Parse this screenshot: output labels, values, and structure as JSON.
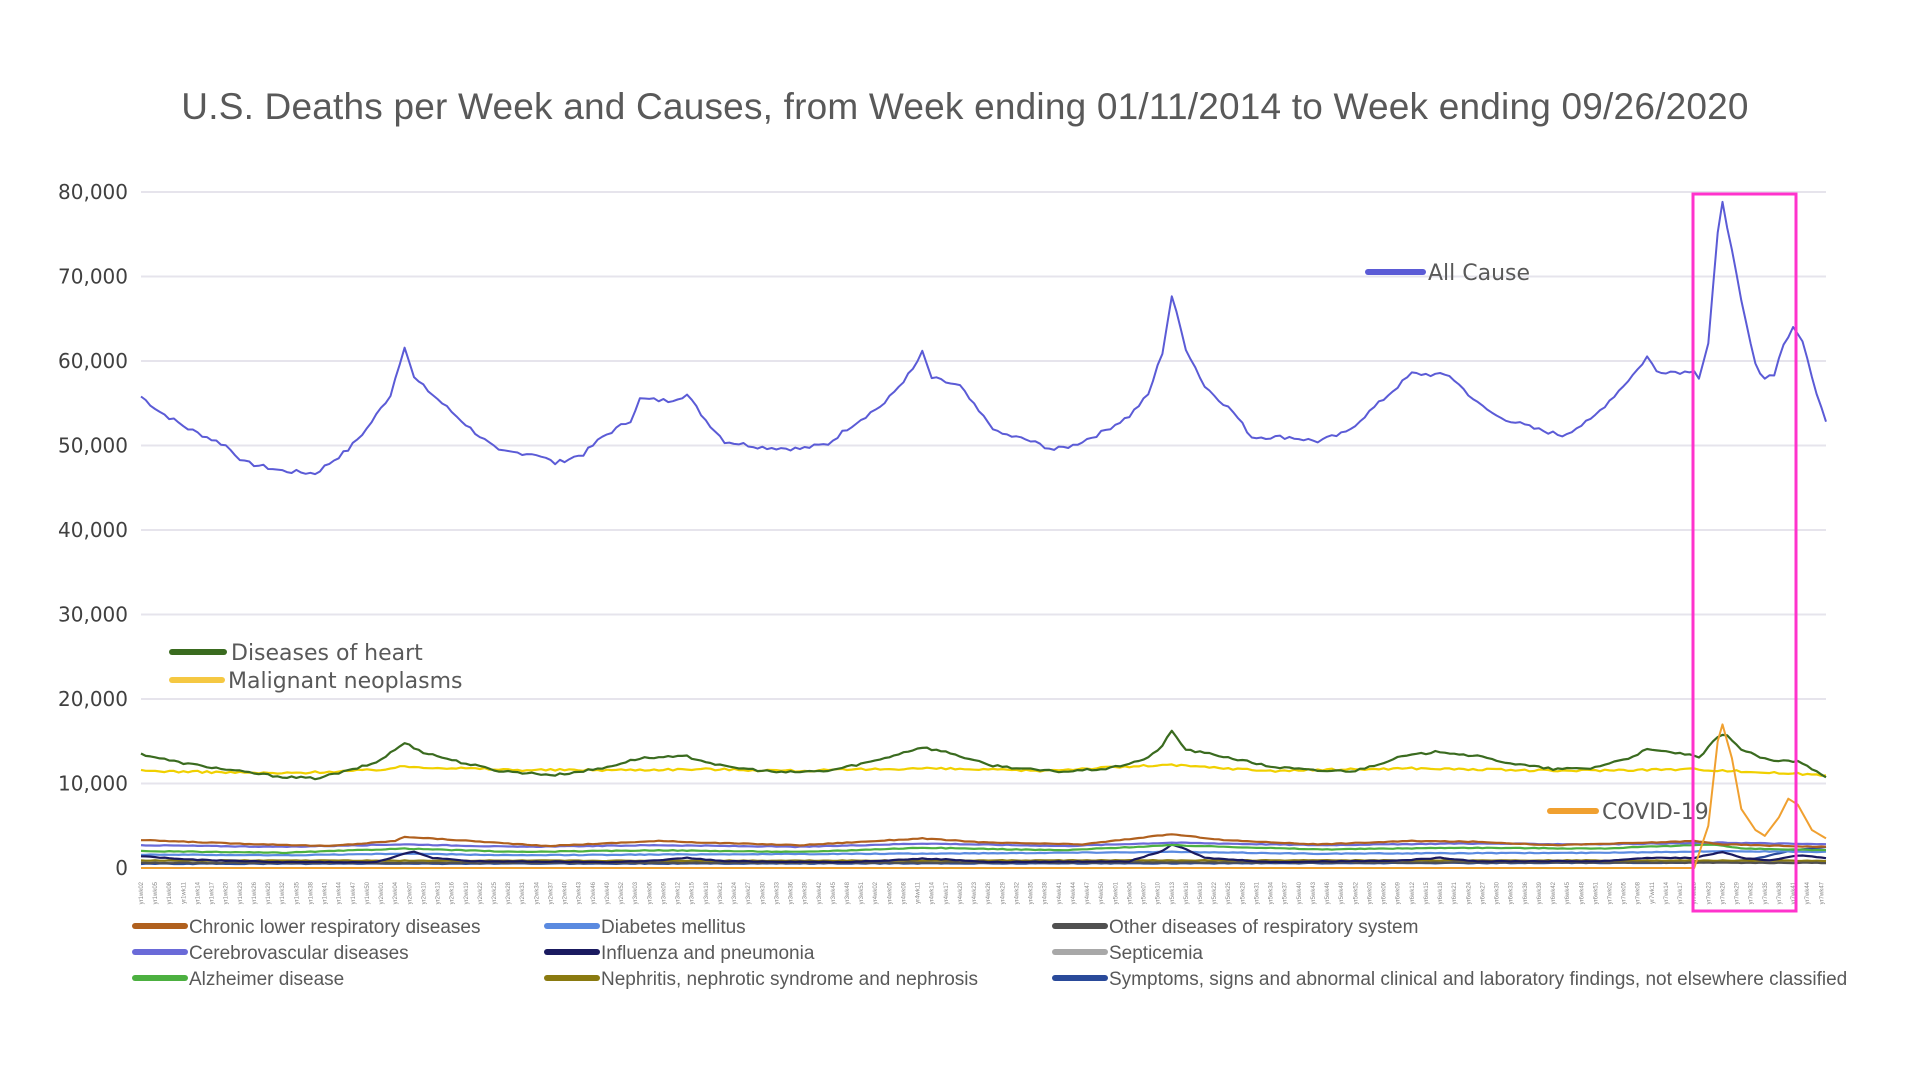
{
  "chart_data": {
    "type": "line",
    "title": "U.S. Deaths per Week and Causes, from Week ending 01/11/2014 to Week ending 09/26/2020",
    "xlabel": "",
    "ylabel": "",
    "ylim": [
      0,
      80000
    ],
    "yticks": [
      0,
      10000,
      20000,
      30000,
      40000,
      50000,
      60000,
      70000,
      80000
    ],
    "ytick_labels": [
      "0",
      "10,000",
      "20,000",
      "30,000",
      "40,000",
      "50,000",
      "60,000",
      "70,000",
      "80,000"
    ],
    "x_tick_pattern": "yr{year}wk{week}, every 3rd week",
    "n_weeks": 351,
    "grid": true,
    "highlight": {
      "label": "COVID-19 period",
      "x_start_week": 324,
      "x_end_week": 347,
      "color": "#ff33cc"
    },
    "series": [
      {
        "name": "All Cause",
        "color": "#5b5bd6",
        "anchors": [
          [
            0,
            55800
          ],
          [
            4,
            54000
          ],
          [
            10,
            52000
          ],
          [
            18,
            50000
          ],
          [
            22,
            48000
          ],
          [
            30,
            47000
          ],
          [
            37,
            46700
          ],
          [
            44,
            49500
          ],
          [
            48,
            52000
          ],
          [
            53,
            56000
          ],
          [
            56,
            61800
          ],
          [
            58,
            58000
          ],
          [
            64,
            55000
          ],
          [
            70,
            52000
          ],
          [
            76,
            49300
          ],
          [
            84,
            49000
          ],
          [
            88,
            47900
          ],
          [
            94,
            49000
          ],
          [
            98,
            51000
          ],
          [
            104,
            53000
          ],
          [
            106,
            55500
          ],
          [
            112,
            55300
          ],
          [
            116,
            56000
          ],
          [
            120,
            53000
          ],
          [
            124,
            50500
          ],
          [
            132,
            49800
          ],
          [
            140,
            49600
          ],
          [
            146,
            50200
          ],
          [
            150,
            52000
          ],
          [
            158,
            55000
          ],
          [
            164,
            59000
          ],
          [
            166,
            61000
          ],
          [
            168,
            58000
          ],
          [
            174,
            57000
          ],
          [
            178,
            54000
          ],
          [
            182,
            51500
          ],
          [
            188,
            50700
          ],
          [
            194,
            49500
          ],
          [
            198,
            50000
          ],
          [
            204,
            51500
          ],
          [
            210,
            53500
          ],
          [
            214,
            56000
          ],
          [
            217,
            61000
          ],
          [
            219,
            67700
          ],
          [
            222,
            61500
          ],
          [
            226,
            57000
          ],
          [
            232,
            54000
          ],
          [
            236,
            51000
          ],
          [
            244,
            51000
          ],
          [
            250,
            50500
          ],
          [
            256,
            51500
          ],
          [
            262,
            54500
          ],
          [
            266,
            56500
          ],
          [
            270,
            58500
          ],
          [
            278,
            58300
          ],
          [
            284,
            55000
          ],
          [
            288,
            53500
          ],
          [
            296,
            52000
          ],
          [
            302,
            51200
          ],
          [
            308,
            53000
          ],
          [
            314,
            56500
          ],
          [
            318,
            59000
          ],
          [
            320,
            60500
          ],
          [
            322,
            58800
          ],
          [
            328,
            58700
          ],
          [
            330,
            59000
          ],
          [
            331,
            58000
          ],
          [
            333,
            62000
          ],
          [
            335,
            75000
          ],
          [
            336,
            79000
          ],
          [
            338,
            73000
          ],
          [
            340,
            67000
          ],
          [
            343,
            59500
          ],
          [
            345,
            58000
          ],
          [
            347,
            58500
          ],
          [
            349,
            62000
          ],
          [
            351,
            63800
          ],
          [
            353,
            62500
          ],
          [
            355,
            58000
          ],
          [
            358,
            53000
          ]
        ]
      },
      {
        "name": "Diseases of heart",
        "color": "#3a6b1f",
        "anchors": [
          [
            0,
            13500
          ],
          [
            8,
            12500
          ],
          [
            20,
            11500
          ],
          [
            30,
            10800
          ],
          [
            37,
            10600
          ],
          [
            44,
            11500
          ],
          [
            50,
            12500
          ],
          [
            54,
            14000
          ],
          [
            56,
            14800
          ],
          [
            60,
            13700
          ],
          [
            68,
            12500
          ],
          [
            76,
            11500
          ],
          [
            88,
            11000
          ],
          [
            98,
            11800
          ],
          [
            106,
            13000
          ],
          [
            116,
            13200
          ],
          [
            124,
            12000
          ],
          [
            136,
            11300
          ],
          [
            146,
            11500
          ],
          [
            156,
            12700
          ],
          [
            164,
            14000
          ],
          [
            166,
            14300
          ],
          [
            172,
            13600
          ],
          [
            180,
            12200
          ],
          [
            190,
            11600
          ],
          [
            196,
            11400
          ],
          [
            206,
            11800
          ],
          [
            214,
            13000
          ],
          [
            217,
            14500
          ],
          [
            219,
            16200
          ],
          [
            222,
            14000
          ],
          [
            230,
            13200
          ],
          [
            240,
            12000
          ],
          [
            250,
            11500
          ],
          [
            258,
            11500
          ],
          [
            268,
            13200
          ],
          [
            276,
            13800
          ],
          [
            284,
            13200
          ],
          [
            292,
            12300
          ],
          [
            300,
            11700
          ],
          [
            308,
            11800
          ],
          [
            316,
            13000
          ],
          [
            320,
            14000
          ],
          [
            328,
            13500
          ],
          [
            331,
            13000
          ],
          [
            335,
            15500
          ],
          [
            337,
            15800
          ],
          [
            340,
            14000
          ],
          [
            346,
            12700
          ],
          [
            352,
            12600
          ],
          [
            356,
            11500
          ],
          [
            358,
            10800
          ]
        ]
      },
      {
        "name": "Malignant neoplasms",
        "color": "#f0d000",
        "anchors": [
          [
            0,
            11500
          ],
          [
            30,
            11200
          ],
          [
            50,
            11600
          ],
          [
            56,
            12000
          ],
          [
            80,
            11600
          ],
          [
            100,
            11600
          ],
          [
            120,
            11700
          ],
          [
            140,
            11500
          ],
          [
            166,
            11800
          ],
          [
            190,
            11500
          ],
          [
            218,
            12200
          ],
          [
            240,
            11500
          ],
          [
            270,
            11800
          ],
          [
            300,
            11500
          ],
          [
            330,
            11700
          ],
          [
            345,
            11300
          ],
          [
            358,
            11000
          ]
        ]
      },
      {
        "name": "COVID-19",
        "color": "#f0a030",
        "anchors": [
          [
            0,
            0
          ],
          [
            330,
            0
          ],
          [
            333,
            5000
          ],
          [
            335,
            15000
          ],
          [
            336,
            17000
          ],
          [
            338,
            13000
          ],
          [
            340,
            7000
          ],
          [
            343,
            4500
          ],
          [
            345,
            3800
          ],
          [
            348,
            6000
          ],
          [
            350,
            8200
          ],
          [
            352,
            7500
          ],
          [
            355,
            4500
          ],
          [
            358,
            3500
          ]
        ]
      },
      {
        "name": "Chronic lower respiratory diseases",
        "color": "#b0601e",
        "anchors": [
          [
            0,
            3300
          ],
          [
            20,
            2900
          ],
          [
            40,
            2600
          ],
          [
            54,
            3200
          ],
          [
            56,
            3700
          ],
          [
            70,
            3200
          ],
          [
            86,
            2600
          ],
          [
            110,
            3200
          ],
          [
            120,
            3000
          ],
          [
            140,
            2700
          ],
          [
            166,
            3500
          ],
          [
            180,
            3000
          ],
          [
            200,
            2800
          ],
          [
            219,
            4000
          ],
          [
            230,
            3300
          ],
          [
            250,
            2800
          ],
          [
            270,
            3200
          ],
          [
            284,
            3100
          ],
          [
            300,
            2700
          ],
          [
            320,
            3000
          ],
          [
            330,
            3200
          ],
          [
            336,
            2800
          ],
          [
            350,
            2600
          ],
          [
            358,
            2500
          ]
        ]
      },
      {
        "name": "Cerebrovascular diseases",
        "color": "#6a6ad8",
        "anchors": [
          [
            0,
            2700
          ],
          [
            30,
            2500
          ],
          [
            56,
            2800
          ],
          [
            80,
            2500
          ],
          [
            110,
            2700
          ],
          [
            140,
            2500
          ],
          [
            166,
            2900
          ],
          [
            196,
            2600
          ],
          [
            219,
            3000
          ],
          [
            250,
            2700
          ],
          [
            280,
            2900
          ],
          [
            310,
            2800
          ],
          [
            336,
            3000
          ],
          [
            358,
            2800
          ]
        ]
      },
      {
        "name": "Alzheimer disease",
        "color": "#4cb040",
        "anchors": [
          [
            0,
            2000
          ],
          [
            30,
            1800
          ],
          [
            56,
            2300
          ],
          [
            80,
            1900
          ],
          [
            110,
            2100
          ],
          [
            140,
            1900
          ],
          [
            166,
            2400
          ],
          [
            196,
            2100
          ],
          [
            219,
            2700
          ],
          [
            250,
            2200
          ],
          [
            280,
            2400
          ],
          [
            310,
            2300
          ],
          [
            334,
            2800
          ],
          [
            340,
            2300
          ],
          [
            358,
            2100
          ]
        ]
      },
      {
        "name": "Diabetes mellitus",
        "color": "#5a8ae0",
        "anchors": [
          [
            0,
            1600
          ],
          [
            30,
            1500
          ],
          [
            56,
            1700
          ],
          [
            80,
            1500
          ],
          [
            110,
            1600
          ],
          [
            166,
            1700
          ],
          [
            219,
            1900
          ],
          [
            250,
            1700
          ],
          [
            310,
            1800
          ],
          [
            336,
            2000
          ],
          [
            358,
            1900
          ]
        ]
      },
      {
        "name": "Influenza and pneumonia",
        "color": "#1a1a60",
        "anchors": [
          [
            0,
            1400
          ],
          [
            10,
            1000
          ],
          [
            30,
            700
          ],
          [
            50,
            700
          ],
          [
            56,
            1700
          ],
          [
            58,
            1900
          ],
          [
            62,
            1200
          ],
          [
            70,
            800
          ],
          [
            100,
            700
          ],
          [
            110,
            900
          ],
          [
            116,
            1200
          ],
          [
            124,
            800
          ],
          [
            150,
            700
          ],
          [
            166,
            1100
          ],
          [
            172,
            1000
          ],
          [
            180,
            700
          ],
          [
            210,
            800
          ],
          [
            217,
            2000
          ],
          [
            219,
            2800
          ],
          [
            222,
            2200
          ],
          [
            226,
            1200
          ],
          [
            240,
            700
          ],
          [
            268,
            900
          ],
          [
            276,
            1200
          ],
          [
            284,
            800
          ],
          [
            310,
            800
          ],
          [
            320,
            1200
          ],
          [
            330,
            1200
          ],
          [
            336,
            1900
          ],
          [
            340,
            1200
          ],
          [
            346,
            900
          ],
          [
            352,
            1500
          ],
          [
            358,
            1200
          ]
        ]
      },
      {
        "name": "Nephritis, nephrotic syndrome and nephrosis",
        "color": "#8a7a10",
        "anchors": [
          [
            0,
            900
          ],
          [
            100,
            850
          ],
          [
            200,
            900
          ],
          [
            300,
            900
          ],
          [
            358,
            850
          ]
        ]
      },
      {
        "name": "Other diseases of respiratory system",
        "color": "#505050",
        "anchors": [
          [
            0,
            600
          ],
          [
            100,
            600
          ],
          [
            200,
            650
          ],
          [
            300,
            650
          ],
          [
            358,
            600
          ]
        ]
      },
      {
        "name": "Septicemia",
        "color": "#a8a8a8",
        "anchors": [
          [
            0,
            750
          ],
          [
            100,
            730
          ],
          [
            200,
            760
          ],
          [
            300,
            760
          ],
          [
            358,
            720
          ]
        ]
      },
      {
        "name": "Symptoms, signs and abnormal clinical and laboratory findings, not elsewhere classified",
        "color": "#2a4a9a",
        "anchors": [
          [
            0,
            500
          ],
          [
            200,
            550
          ],
          [
            320,
            600
          ],
          [
            336,
            700
          ],
          [
            340,
            900
          ],
          [
            344,
            1200
          ],
          [
            350,
            2000
          ],
          [
            358,
            2500
          ]
        ]
      }
    ]
  },
  "legend_labels": {
    "all_cause": "All  Cause",
    "heart": "Diseases of heart",
    "neoplasms": "Malignant neoplasms",
    "covid": "COVID-19",
    "bottom": [
      "Chronic lower respiratory diseases",
      "Cerebrovascular diseases",
      "Alzheimer disease",
      "Diabetes mellitus",
      "Influenza and pneumonia",
      "Nephritis, nephrotic syndrome and nephrosis",
      "Other diseases of respiratory system",
      "Septicemia",
      "Symptoms, signs and abnormal clinical and laboratory findings, not elsewhere classified"
    ]
  }
}
